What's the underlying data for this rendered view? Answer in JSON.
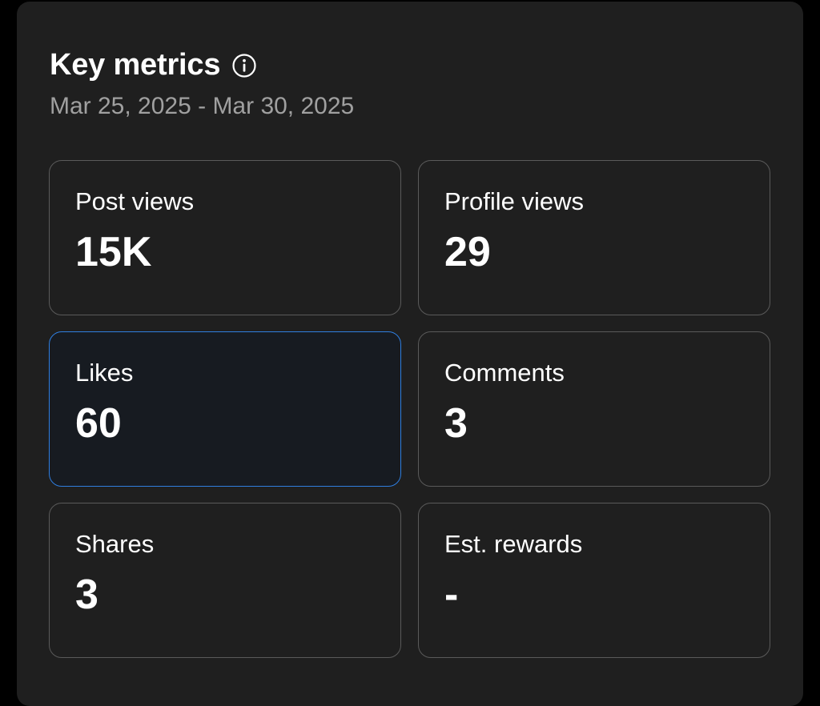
{
  "header": {
    "title": "Key metrics",
    "info_icon": "info-circle-icon",
    "date_range": "Mar 25, 2025 - Mar 30, 2025"
  },
  "metrics": [
    {
      "label": "Post views",
      "value": "15K",
      "selected": false
    },
    {
      "label": "Profile views",
      "value": "29",
      "selected": false
    },
    {
      "label": "Likes",
      "value": "60",
      "selected": true
    },
    {
      "label": "Comments",
      "value": "3",
      "selected": false
    },
    {
      "label": "Shares",
      "value": "3",
      "selected": false
    },
    {
      "label": "Est. rewards",
      "value": "-",
      "selected": false
    }
  ],
  "colors": {
    "background": "#000000",
    "panel": "#1f1f1f",
    "card_border": "#5a5a5a",
    "selected_border": "#2f7ee0",
    "selected_fill": "#171b21",
    "muted_text": "#a0a0a0",
    "text": "#ffffff"
  }
}
